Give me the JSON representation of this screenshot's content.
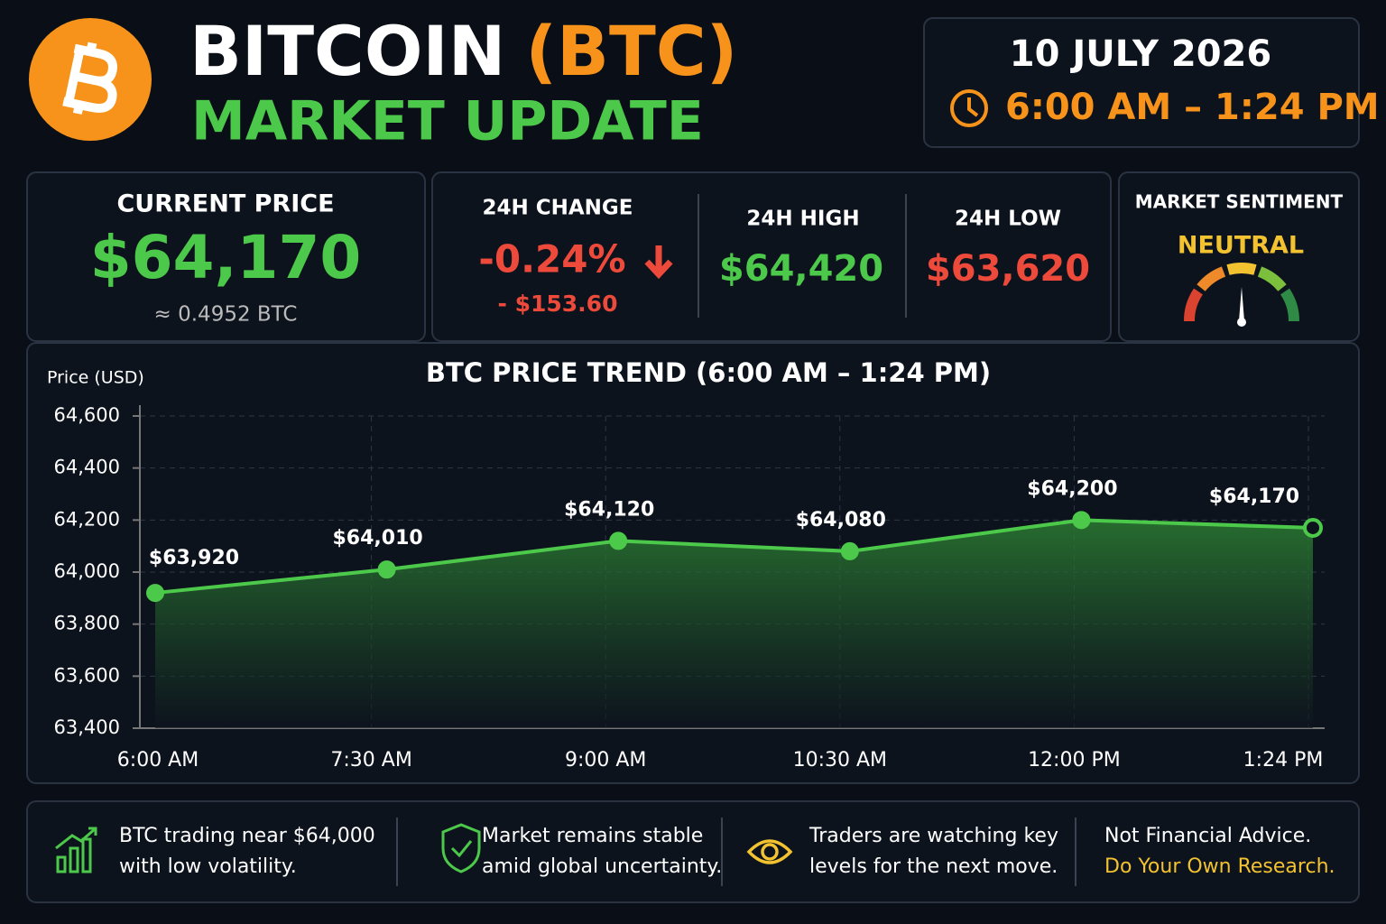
{
  "header": {
    "title": "BITCOIN",
    "ticker": "(BTC)",
    "subtitle": "MARKET UPDATE",
    "date": "10 JULY 2026",
    "time_range": "6:00 AM – 1:24 PM"
  },
  "stats": {
    "current_price": {
      "label": "CURRENT PRICE",
      "value": "$64,170",
      "btc": "≈ 0.4952 BTC"
    },
    "change": {
      "label": "24H CHANGE",
      "percent": "-0.24%",
      "amount": "- $153.60"
    },
    "high": {
      "label": "24H HIGH",
      "value": "$64,420"
    },
    "low": {
      "label": "24H LOW",
      "value": "$63,620"
    },
    "sentiment": {
      "label": "MARKET SENTIMENT",
      "value": "NEUTRAL"
    }
  },
  "chart_data": {
    "type": "line",
    "title": "BTC PRICE TREND (6:00 AM – 1:24 PM)",
    "y_label": "Price (USD)",
    "categories": [
      "6:00 AM",
      "7:30 AM",
      "9:00 AM",
      "10:30 AM",
      "12:00 PM",
      "1:24 PM"
    ],
    "values": [
      63920,
      64010,
      64120,
      64080,
      64200,
      64170
    ],
    "value_labels": [
      "$63,920",
      "$64,010",
      "$64,120",
      "$64,080",
      "$64,200",
      "$64,170"
    ],
    "color": "#4cc94a",
    "ylim": [
      63400,
      64600
    ],
    "yticks": [
      {
        "value": 63400,
        "label": "63,400"
      },
      {
        "value": 63600,
        "label": "63,600"
      },
      {
        "value": 63800,
        "label": "63,800"
      },
      {
        "value": 64000,
        "label": "64,000"
      },
      {
        "value": 64200,
        "label": "64,200"
      },
      {
        "value": 64400,
        "label": "64,400"
      },
      {
        "value": 64600,
        "label": "64,600"
      }
    ],
    "grid": true
  },
  "footer": {
    "items": [
      {
        "lines": [
          "BTC trading near $64,000",
          "with low volatility."
        ]
      },
      {
        "lines": [
          "Market remains stable",
          "amid global uncertainty."
        ]
      },
      {
        "lines": [
          "Traders are watching key",
          "levels for the next move."
        ]
      },
      {
        "lines": [
          "Not Financial Advice.",
          "Do Your Own Research."
        ]
      }
    ]
  }
}
